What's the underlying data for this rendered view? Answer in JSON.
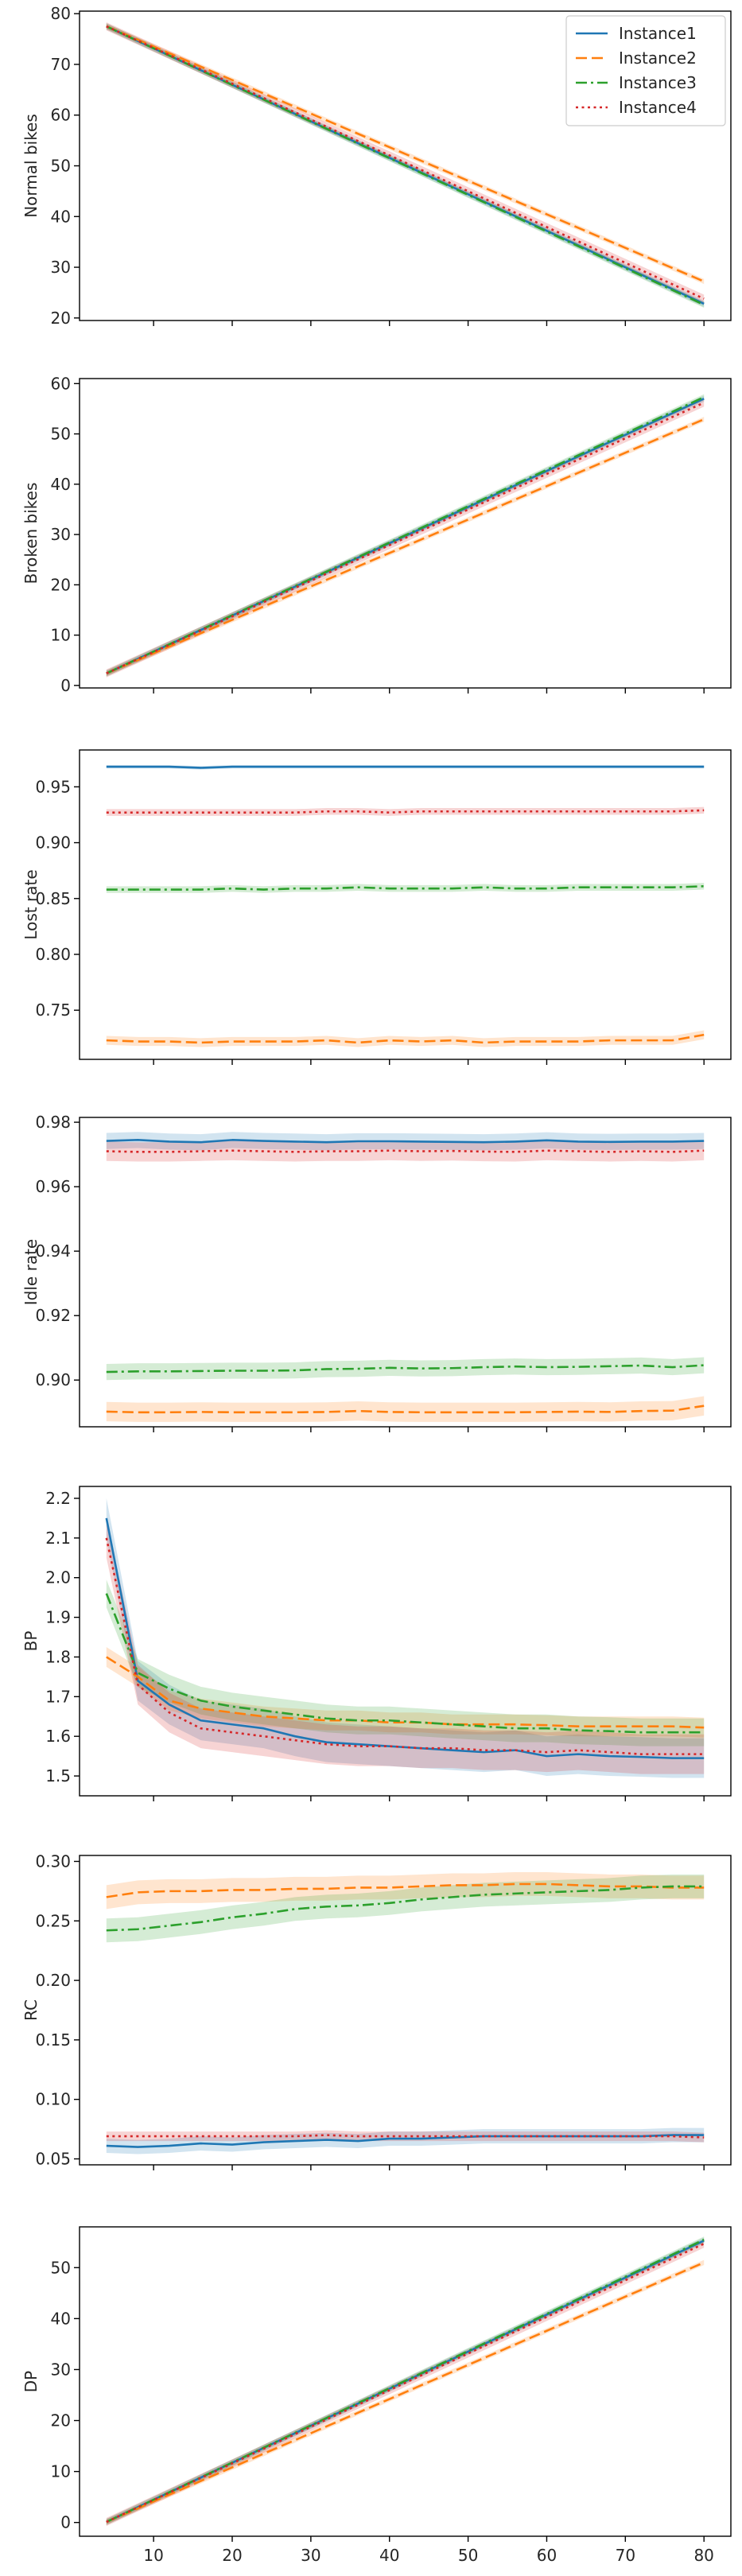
{
  "colors": {
    "Instance1": "#1f77b4",
    "Instance2": "#ff7f0e",
    "Instance3": "#2ca02c",
    "Instance4": "#d62728",
    "axis": "#000000",
    "text": "#262626"
  },
  "legend": {
    "placement": "top-right",
    "entries": [
      {
        "name": "Instance1",
        "style": "solid"
      },
      {
        "name": "Instance2",
        "style": "dashed"
      },
      {
        "name": "Instance3",
        "style": "dashdot"
      },
      {
        "name": "Instance4",
        "style": "dotted"
      }
    ]
  },
  "chart_data": [
    {
      "type": "line",
      "ylabel": "Normal bikes",
      "xlabel": "",
      "x": [
        4,
        80
      ],
      "xlim": [
        4,
        80
      ],
      "ylim": [
        19.5,
        80.5
      ],
      "yticks": [
        20,
        30,
        40,
        50,
        60,
        70,
        80
      ],
      "xticks": [
        10,
        20,
        30,
        40,
        50,
        60,
        70,
        80
      ],
      "show_xtick_labels": false,
      "series": [
        {
          "name": "Instance1",
          "values": [
            77.5,
            22.8
          ],
          "band": 0.6
        },
        {
          "name": "Instance2",
          "values": [
            77.5,
            27.2
          ],
          "band": 0.5
        },
        {
          "name": "Instance3",
          "values": [
            77.5,
            22.6
          ],
          "band": 0.6
        },
        {
          "name": "Instance4",
          "values": [
            77.5,
            23.8
          ],
          "band": 0.8
        }
      ]
    },
    {
      "type": "line",
      "ylabel": "Broken bikes",
      "xlabel": "",
      "x": [
        4,
        80
      ],
      "xlim": [
        4,
        80
      ],
      "ylim": [
        -0.5,
        61
      ],
      "yticks": [
        0,
        10,
        20,
        30,
        40,
        50,
        60
      ],
      "xticks": [
        10,
        20,
        30,
        40,
        50,
        60,
        70,
        80
      ],
      "show_xtick_labels": false,
      "series": [
        {
          "name": "Instance1",
          "values": [
            2.4,
            57.0
          ],
          "band": 0.6
        },
        {
          "name": "Instance2",
          "values": [
            2.4,
            52.9
          ],
          "band": 0.5
        },
        {
          "name": "Instance3",
          "values": [
            2.4,
            57.3
          ],
          "band": 0.6
        },
        {
          "name": "Instance4",
          "values": [
            2.4,
            56.2
          ],
          "band": 0.8
        }
      ]
    },
    {
      "type": "line",
      "ylabel": "Lost rate",
      "xlabel": "",
      "x": [
        4,
        8,
        12,
        16,
        20,
        24,
        28,
        32,
        36,
        40,
        44,
        48,
        52,
        56,
        60,
        64,
        68,
        72,
        76,
        80
      ],
      "xlim": [
        4,
        80
      ],
      "ylim": [
        0.706,
        0.983
      ],
      "yticks": [
        0.75,
        0.8,
        0.85,
        0.9,
        0.95
      ],
      "xticks": [
        10,
        20,
        30,
        40,
        50,
        60,
        70,
        80
      ],
      "show_xtick_labels": false,
      "series": [
        {
          "name": "Instance1",
          "values": [
            0.968,
            0.968,
            0.968,
            0.967,
            0.968,
            0.968,
            0.968,
            0.968,
            0.968,
            0.968,
            0.968,
            0.968,
            0.968,
            0.968,
            0.968,
            0.968,
            0.968,
            0.968,
            0.968,
            0.968
          ],
          "band": 0.0015
        },
        {
          "name": "Instance2",
          "values": [
            0.723,
            0.722,
            0.722,
            0.721,
            0.722,
            0.722,
            0.722,
            0.723,
            0.721,
            0.723,
            0.722,
            0.723,
            0.721,
            0.722,
            0.722,
            0.722,
            0.723,
            0.723,
            0.723,
            0.728
          ],
          "band": 0.004
        },
        {
          "name": "Instance3",
          "values": [
            0.858,
            0.858,
            0.858,
            0.858,
            0.859,
            0.858,
            0.859,
            0.859,
            0.86,
            0.859,
            0.859,
            0.859,
            0.86,
            0.859,
            0.859,
            0.86,
            0.86,
            0.86,
            0.86,
            0.861
          ],
          "band": 0.003
        },
        {
          "name": "Instance4",
          "values": [
            0.927,
            0.927,
            0.927,
            0.927,
            0.927,
            0.927,
            0.927,
            0.928,
            0.928,
            0.927,
            0.928,
            0.928,
            0.928,
            0.928,
            0.928,
            0.928,
            0.928,
            0.928,
            0.928,
            0.929
          ],
          "band": 0.003
        }
      ]
    },
    {
      "type": "line",
      "ylabel": "Idle rate",
      "xlabel": "",
      "x": [
        4,
        8,
        12,
        16,
        20,
        24,
        28,
        32,
        36,
        40,
        44,
        48,
        52,
        56,
        60,
        64,
        68,
        72,
        76,
        80
      ],
      "xlim": [
        4,
        80
      ],
      "ylim": [
        0.8855,
        0.9815
      ],
      "yticks": [
        0.9,
        0.92,
        0.94,
        0.96,
        0.98
      ],
      "xticks": [
        10,
        20,
        30,
        40,
        50,
        60,
        70,
        80
      ],
      "show_xtick_labels": false,
      "series": [
        {
          "name": "Instance1",
          "values": [
            0.9742,
            0.9745,
            0.974,
            0.9738,
            0.9745,
            0.9742,
            0.974,
            0.9738,
            0.9741,
            0.9741,
            0.974,
            0.9739,
            0.9738,
            0.974,
            0.9744,
            0.974,
            0.9739,
            0.974,
            0.974,
            0.9742
          ],
          "band": 0.0025
        },
        {
          "name": "Instance2",
          "values": [
            0.8902,
            0.89,
            0.89,
            0.8901,
            0.89,
            0.89,
            0.89,
            0.8901,
            0.8904,
            0.8901,
            0.89,
            0.89,
            0.89,
            0.89,
            0.8901,
            0.8902,
            0.8901,
            0.8904,
            0.8905,
            0.892
          ],
          "band": 0.003
        },
        {
          "name": "Instance3",
          "values": [
            0.9025,
            0.9027,
            0.9027,
            0.9028,
            0.9029,
            0.9029,
            0.903,
            0.9034,
            0.9035,
            0.9038,
            0.9036,
            0.9037,
            0.904,
            0.9042,
            0.904,
            0.9041,
            0.9043,
            0.9045,
            0.904,
            0.9046
          ],
          "band": 0.0025
        },
        {
          "name": "Instance4",
          "values": [
            0.971,
            0.9708,
            0.9708,
            0.971,
            0.9712,
            0.971,
            0.9708,
            0.971,
            0.971,
            0.9712,
            0.971,
            0.9711,
            0.9709,
            0.9708,
            0.9712,
            0.971,
            0.9708,
            0.971,
            0.9708,
            0.9712
          ],
          "band": 0.003
        }
      ]
    },
    {
      "type": "line",
      "ylabel": "BP",
      "xlabel": "",
      "x": [
        4,
        8,
        12,
        16,
        20,
        24,
        28,
        32,
        36,
        40,
        44,
        48,
        52,
        56,
        60,
        64,
        68,
        72,
        76,
        80
      ],
      "xlim": [
        4,
        80
      ],
      "ylim": [
        1.45,
        2.23
      ],
      "yticks": [
        1.5,
        1.6,
        1.7,
        1.8,
        1.9,
        2.0,
        2.1,
        2.2
      ],
      "xticks": [
        10,
        20,
        30,
        40,
        50,
        60,
        70,
        80
      ],
      "show_xtick_labels": false,
      "series": [
        {
          "name": "Instance1",
          "values": [
            2.15,
            1.74,
            1.68,
            1.64,
            1.63,
            1.62,
            1.6,
            1.585,
            1.58,
            1.575,
            1.57,
            1.565,
            1.56,
            1.565,
            1.55,
            1.555,
            1.55,
            1.548,
            1.545,
            1.545
          ],
          "band": 0.05
        },
        {
          "name": "Instance2",
          "values": [
            1.8,
            1.75,
            1.69,
            1.67,
            1.66,
            1.65,
            1.645,
            1.64,
            1.64,
            1.635,
            1.635,
            1.63,
            1.63,
            1.63,
            1.628,
            1.625,
            1.625,
            1.625,
            1.625,
            1.622
          ],
          "band": 0.025
        },
        {
          "name": "Instance3",
          "values": [
            1.96,
            1.76,
            1.72,
            1.69,
            1.675,
            1.665,
            1.655,
            1.645,
            1.64,
            1.64,
            1.635,
            1.63,
            1.625,
            1.62,
            1.62,
            1.615,
            1.613,
            1.61,
            1.61,
            1.61
          ],
          "band": 0.035
        },
        {
          "name": "Instance4",
          "values": [
            2.1,
            1.73,
            1.66,
            1.62,
            1.61,
            1.6,
            1.59,
            1.58,
            1.575,
            1.575,
            1.57,
            1.57,
            1.565,
            1.565,
            1.56,
            1.565,
            1.56,
            1.555,
            1.555,
            1.555
          ],
          "band": 0.05
        }
      ]
    },
    {
      "type": "line",
      "ylabel": "RC",
      "xlabel": "",
      "x": [
        4,
        8,
        12,
        16,
        20,
        24,
        28,
        32,
        36,
        40,
        44,
        48,
        52,
        56,
        60,
        64,
        68,
        72,
        76,
        80
      ],
      "xlim": [
        4,
        80
      ],
      "ylim": [
        0.045,
        0.305
      ],
      "yticks": [
        0.05,
        0.1,
        0.15,
        0.2,
        0.25,
        0.3
      ],
      "xticks": [
        10,
        20,
        30,
        40,
        50,
        60,
        70,
        80
      ],
      "show_xtick_labels": false,
      "series": [
        {
          "name": "Instance1",
          "values": [
            0.061,
            0.06,
            0.061,
            0.063,
            0.062,
            0.064,
            0.065,
            0.066,
            0.065,
            0.067,
            0.067,
            0.068,
            0.069,
            0.069,
            0.069,
            0.069,
            0.069,
            0.069,
            0.07,
            0.07
          ],
          "band": 0.006
        },
        {
          "name": "Instance2",
          "values": [
            0.27,
            0.274,
            0.275,
            0.275,
            0.276,
            0.276,
            0.277,
            0.277,
            0.278,
            0.278,
            0.279,
            0.28,
            0.28,
            0.281,
            0.281,
            0.28,
            0.279,
            0.279,
            0.278,
            0.278
          ],
          "band": 0.01
        },
        {
          "name": "Instance3",
          "values": [
            0.242,
            0.243,
            0.246,
            0.249,
            0.253,
            0.256,
            0.26,
            0.262,
            0.263,
            0.265,
            0.268,
            0.27,
            0.272,
            0.273,
            0.274,
            0.275,
            0.276,
            0.278,
            0.279,
            0.279
          ],
          "band": 0.01
        },
        {
          "name": "Instance4",
          "values": [
            0.069,
            0.069,
            0.069,
            0.069,
            0.069,
            0.069,
            0.069,
            0.07,
            0.069,
            0.069,
            0.069,
            0.069,
            0.069,
            0.069,
            0.069,
            0.069,
            0.069,
            0.069,
            0.069,
            0.068
          ],
          "band": 0.004
        }
      ]
    },
    {
      "type": "line",
      "ylabel": "DP",
      "xlabel": "",
      "x": [
        4,
        80
      ],
      "xlim": [
        4,
        80
      ],
      "ylim": [
        -2.7,
        58
      ],
      "yticks": [
        0,
        10,
        20,
        30,
        40,
        50
      ],
      "xticks": [
        10,
        20,
        30,
        40,
        50,
        60,
        70,
        80
      ],
      "show_xtick_labels": true,
      "series": [
        {
          "name": "Instance1",
          "values": [
            0.1,
            55.3
          ],
          "band": 0.6
        },
        {
          "name": "Instance2",
          "values": [
            0.1,
            51.0
          ],
          "band": 0.5
        },
        {
          "name": "Instance3",
          "values": [
            0.1,
            55.5
          ],
          "band": 0.6
        },
        {
          "name": "Instance4",
          "values": [
            0.1,
            54.7
          ],
          "band": 0.8
        }
      ]
    }
  ]
}
